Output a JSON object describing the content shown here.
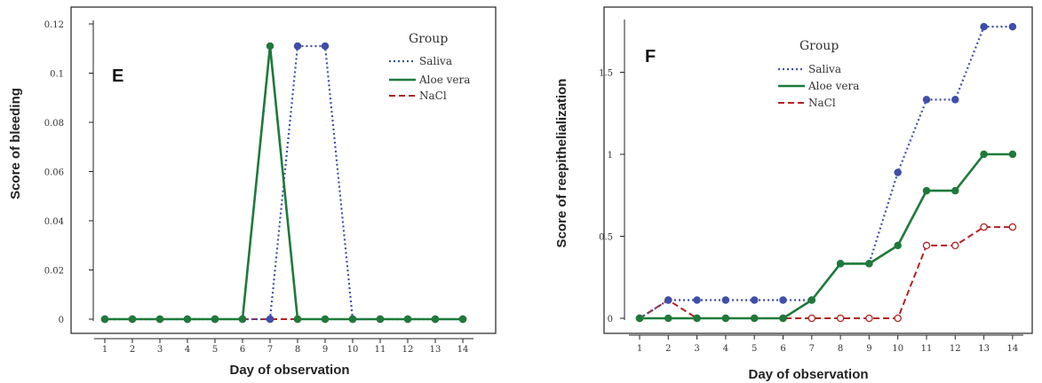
{
  "chart_data": [
    {
      "type": "line",
      "panel_label": "E",
      "xlabel": "Day of observation",
      "ylabel": "Score of bleeding",
      "x": [
        1,
        2,
        3,
        4,
        5,
        6,
        7,
        8,
        9,
        10,
        11,
        12,
        13,
        14
      ],
      "xticks": [
        "1",
        "2",
        "3",
        "4",
        "5",
        "6",
        "7",
        "8",
        "9",
        "10",
        "11",
        "12",
        "13",
        "14"
      ],
      "yticks": [
        "0",
        "0.02",
        "0.04",
        "0.06",
        "0.08",
        "0.1",
        "0.12"
      ],
      "ylim": [
        0,
        0.12
      ],
      "grid": false,
      "legend": {
        "title": "Group",
        "placement": "top-right"
      },
      "series": [
        {
          "name": "Saliva",
          "color": "#3f4fa8",
          "dash": "dotted",
          "values": [
            0,
            0,
            0,
            0,
            0,
            0,
            0,
            0.111,
            0.111,
            0,
            0,
            0,
            0,
            0
          ]
        },
        {
          "name": "Aloe vera",
          "color": "#1e7a3a",
          "dash": "solid",
          "values": [
            0,
            0,
            0,
            0,
            0,
            0,
            0.111,
            0,
            0,
            0,
            0,
            0,
            0,
            0
          ]
        },
        {
          "name": "NaCl",
          "color": "#b22222",
          "dash": "dashed",
          "values": [
            0,
            0,
            0,
            0,
            0,
            0,
            0,
            0,
            0,
            0,
            0,
            0,
            0,
            0
          ]
        }
      ]
    },
    {
      "type": "line",
      "panel_label": "F",
      "xlabel": "Day of observation",
      "ylabel": "Score of reepithelialization",
      "x": [
        1,
        2,
        3,
        4,
        5,
        6,
        7,
        8,
        9,
        10,
        11,
        12,
        13,
        14
      ],
      "xticks": [
        "1",
        "2",
        "3",
        "4",
        "5",
        "6",
        "7",
        "8",
        "9",
        "10",
        "11",
        "12",
        "13",
        "14"
      ],
      "yticks": [
        "0",
        "0.5",
        "1",
        "1.5"
      ],
      "ylim": [
        0,
        1.8
      ],
      "grid": false,
      "legend": {
        "title": "Group",
        "placement": "top-left"
      },
      "series": [
        {
          "name": "Saliva",
          "color": "#3f4fa8",
          "dash": "dotted",
          "values": [
            0,
            0.111,
            0.111,
            0.111,
            0.111,
            0.111,
            0.111,
            0.333,
            0.333,
            0.889,
            1.333,
            1.333,
            1.778,
            1.778
          ]
        },
        {
          "name": "Aloe vera",
          "color": "#1e7a3a",
          "dash": "solid",
          "values": [
            0,
            0,
            0,
            0,
            0,
            0,
            0.111,
            0.333,
            0.333,
            0.444,
            0.778,
            0.778,
            1,
            1
          ]
        },
        {
          "name": "NaCl",
          "color": "#b22222",
          "dash": "dashed",
          "values": [
            0,
            0.111,
            0,
            0,
            0,
            0,
            0,
            0,
            0,
            0,
            0.444,
            0.444,
            0.556,
            0.556
          ]
        }
      ]
    }
  ]
}
